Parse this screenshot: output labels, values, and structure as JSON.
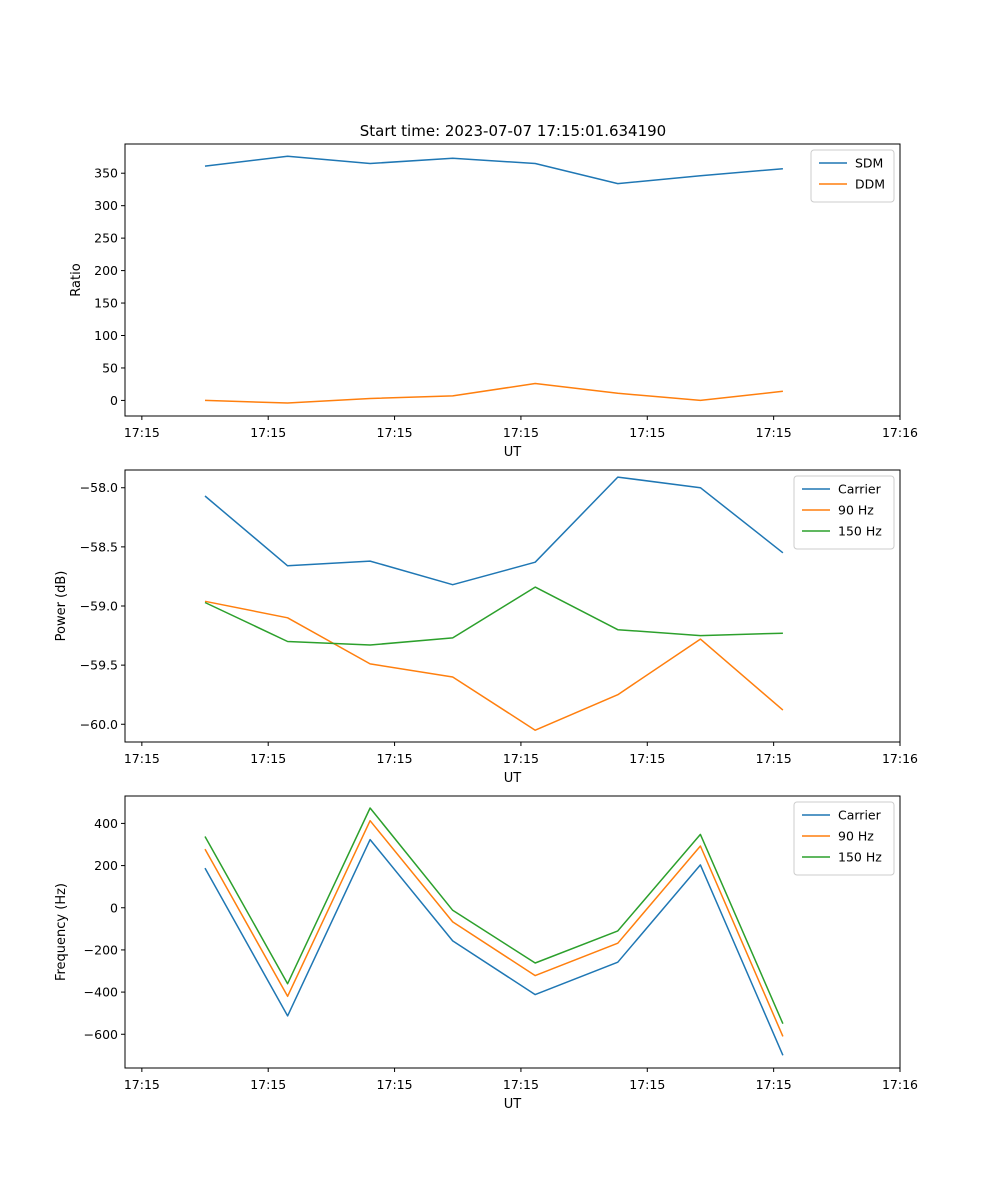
{
  "figure": {
    "title": "Start time: 2023-07-07 17:15:01.634190",
    "xlabel": "UT",
    "xtick_labels": [
      "17:15",
      "17:15",
      "17:15",
      "17:15",
      "17:15",
      "17:15",
      "17:16"
    ]
  },
  "colors": {
    "blue": "#1f77b4",
    "orange": "#ff7f0e",
    "green": "#2ca02c"
  },
  "chart_data": [
    {
      "type": "line",
      "title": "Start time: 2023-07-07 17:15:01.634190",
      "xlabel": "UT",
      "ylabel": "Ratio",
      "xlim": [
        -0.2,
        9.0
      ],
      "ylim": [
        -24,
        395
      ],
      "yticks": [
        0,
        50,
        100,
        150,
        200,
        250,
        300,
        350
      ],
      "ytick_labels": [
        "0",
        "50",
        "100",
        "150",
        "200",
        "250",
        "300",
        "350"
      ],
      "x": [
        0.75,
        1.73,
        2.71,
        3.69,
        4.67,
        5.65,
        6.63,
        7.61
      ],
      "legend_position": "top-right",
      "series": [
        {
          "name": "SDM",
          "color": "blue",
          "values": [
            361,
            376,
            365,
            373,
            365,
            334,
            346,
            357
          ]
        },
        {
          "name": "DDM",
          "color": "orange",
          "values": [
            0,
            -4,
            3,
            7,
            26,
            11,
            0,
            14
          ]
        }
      ]
    },
    {
      "type": "line",
      "title": "",
      "xlabel": "UT",
      "ylabel": "Power (dB)",
      "xlim": [
        -0.2,
        9.0
      ],
      "ylim": [
        -60.15,
        -57.85
      ],
      "yticks": [
        -60.0,
        -59.5,
        -59.0,
        -58.5,
        -58.0
      ],
      "ytick_labels": [
        "−60.0",
        "−59.5",
        "−59.0",
        "−58.5",
        "−58.0"
      ],
      "x": [
        0.75,
        1.73,
        2.71,
        3.69,
        4.67,
        5.65,
        6.63,
        7.61
      ],
      "legend_position": "top-right",
      "series": [
        {
          "name": "Carrier",
          "color": "blue",
          "values": [
            -58.07,
            -58.66,
            -58.62,
            -58.82,
            -58.63,
            -57.91,
            -58.0,
            -58.55
          ]
        },
        {
          "name": "90 Hz",
          "color": "orange",
          "values": [
            -58.96,
            -59.1,
            -59.49,
            -59.6,
            -60.05,
            -59.75,
            -59.28,
            -59.88
          ]
        },
        {
          "name": "150 Hz",
          "color": "green",
          "values": [
            -58.97,
            -59.3,
            -59.33,
            -59.27,
            -58.84,
            -59.2,
            -59.25,
            -59.23
          ]
        }
      ]
    },
    {
      "type": "line",
      "title": "",
      "xlabel": "UT",
      "ylabel": "Frequency (Hz)",
      "xlim": [
        -0.2,
        9.0
      ],
      "ylim": [
        -760,
        530
      ],
      "yticks": [
        -600,
        -400,
        -200,
        0,
        200,
        400
      ],
      "ytick_labels": [
        "−600",
        "−400",
        "−200",
        "0",
        "200",
        "400"
      ],
      "x": [
        0.75,
        1.73,
        2.71,
        3.69,
        4.67,
        5.65,
        6.63,
        7.61
      ],
      "legend_position": "top-right",
      "series": [
        {
          "name": "Carrier",
          "color": "blue",
          "values": [
            188,
            -513,
            323,
            -157,
            -412,
            -258,
            203,
            -700
          ]
        },
        {
          "name": "90 Hz",
          "color": "orange",
          "values": [
            278,
            -420,
            413,
            -67,
            -322,
            -168,
            293,
            -610
          ]
        },
        {
          "name": "150 Hz",
          "color": "green",
          "values": [
            338,
            -360,
            473,
            -12,
            -262,
            -110,
            348,
            -550
          ]
        }
      ]
    }
  ]
}
